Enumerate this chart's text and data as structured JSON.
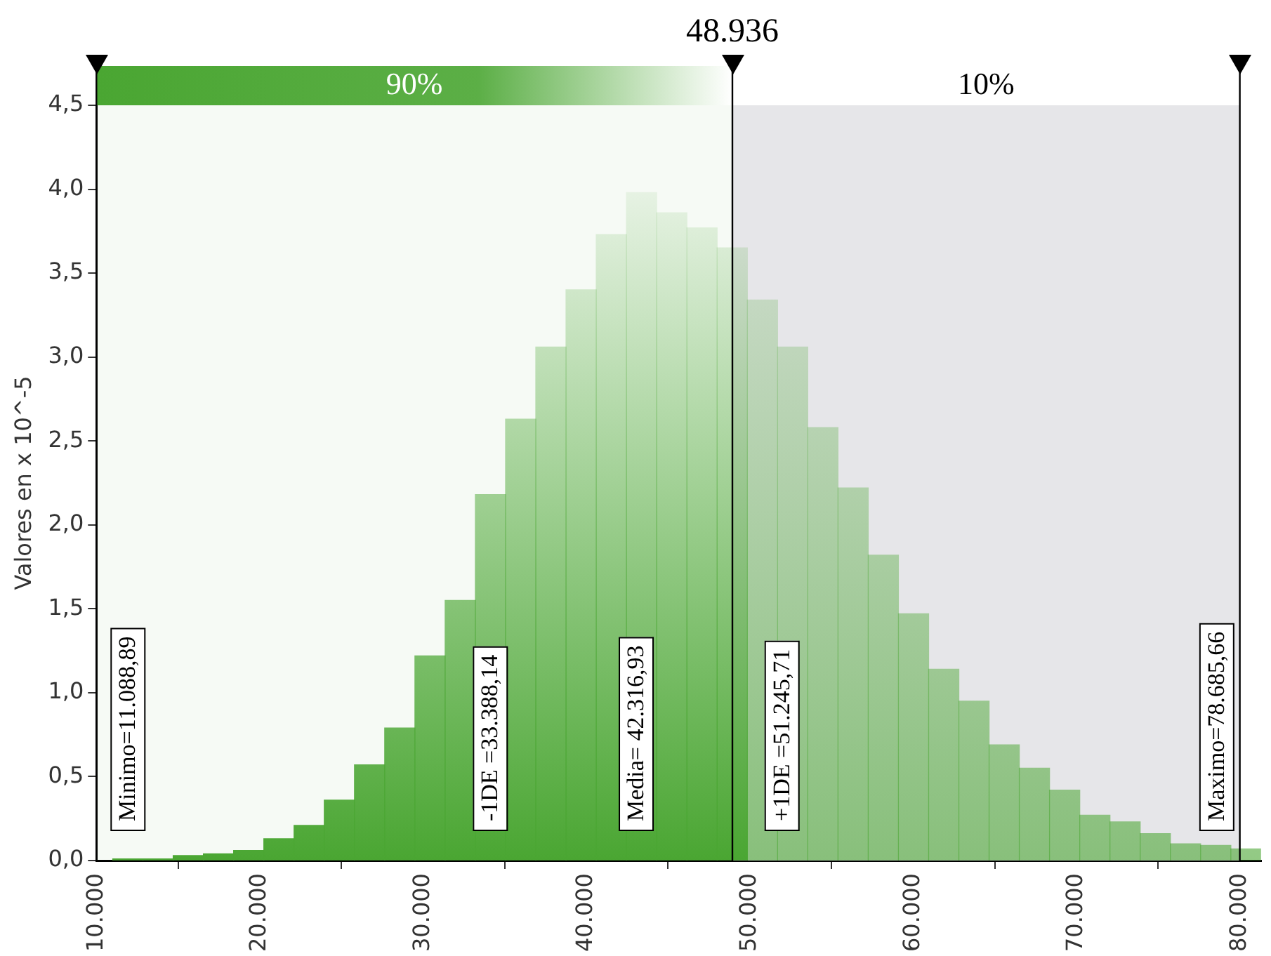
{
  "chart_data": {
    "type": "histogram",
    "ylabel": "Valores en x 10^-5",
    "bins": [
      11000,
      12850,
      14700,
      16550,
      18400,
      20250,
      22100,
      23950,
      25800,
      27650,
      29500,
      31350,
      33200,
      35050,
      36900,
      38750,
      40600,
      42450,
      44300,
      46150,
      48000,
      49850,
      51700,
      53550,
      55400,
      57250,
      59100,
      60950,
      62800,
      64650,
      66500,
      68350,
      70200,
      72050,
      73900,
      75750,
      77600,
      79450,
      81300
    ],
    "values": [
      0.01,
      0.01,
      0.03,
      0.04,
      0.06,
      0.13,
      0.21,
      0.36,
      0.57,
      0.79,
      1.22,
      1.55,
      2.18,
      2.63,
      3.06,
      3.4,
      3.73,
      3.98,
      3.86,
      3.77,
      3.65,
      3.34,
      3.06,
      2.58,
      2.22,
      1.82,
      1.47,
      1.14,
      0.95,
      0.69,
      0.55,
      0.42,
      0.27,
      0.23,
      0.16,
      0.1,
      0.09,
      0.07
    ],
    "color": "#4aa632",
    "xlim": [
      10000,
      81300
    ],
    "xticks": [
      {
        "value": 10000,
        "label": "10.000"
      },
      {
        "value": 20000,
        "label": "20.000"
      },
      {
        "value": 30000,
        "label": "30.000"
      },
      {
        "value": 40000,
        "label": "40.000"
      },
      {
        "value": 50000,
        "label": "50.000"
      },
      {
        "value": 60000,
        "label": "60.000"
      },
      {
        "value": 70000,
        "label": "70.000"
      },
      {
        "value": 80000,
        "label": "80.000"
      }
    ],
    "ylim": [
      0,
      4.5
    ],
    "yticks": [
      {
        "value": 0,
        "label": "0,0"
      },
      {
        "value": 0.5,
        "label": "0,5"
      },
      {
        "value": 1,
        "label": "1,0"
      },
      {
        "value": 1.5,
        "label": "1,5"
      },
      {
        "value": 2,
        "label": "2,0"
      },
      {
        "value": 2.5,
        "label": "2,5"
      },
      {
        "value": 3,
        "label": "3,0"
      },
      {
        "value": 3.5,
        "label": "3,5"
      },
      {
        "value": 4,
        "label": "4,0"
      },
      {
        "value": 4.5,
        "label": "4,5"
      }
    ],
    "ref_lines": [
      {
        "axis": "x",
        "value": 48936,
        "label": "48.936",
        "color": "#000000"
      }
    ],
    "bands": [
      {
        "axis": "x",
        "from": 10000,
        "to": 48936,
        "label": "90%",
        "color": "#4aa632"
      },
      {
        "axis": "x",
        "from": 48936,
        "to": 80000,
        "label": "10%",
        "color": "#e6e6e9"
      }
    ],
    "annotations": [
      "Minimo=11.088,89",
      {
        "text": "-1DE =33.388,14",
        "x": 33388.14
      },
      {
        "text": "Media= 42.316,93",
        "x": 42316.93
      },
      {
        "text": "+1DE =51.245,71",
        "x": 51245.71
      },
      "Maximo=78.685,66"
    ],
    "legend": false
  }
}
